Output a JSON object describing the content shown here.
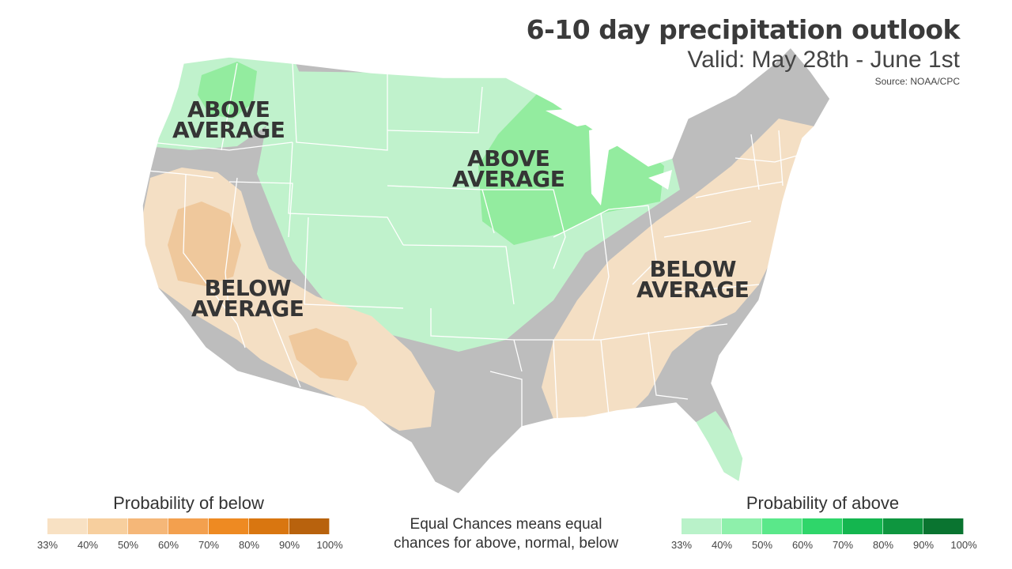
{
  "header": {
    "title": "6-10 day precipitation outlook",
    "subtitle": "Valid: May 28th - June 1st",
    "source": "Source: NOAA/CPC"
  },
  "regions": {
    "northwest": {
      "line1": "ABOVE",
      "line2": "AVERAGE"
    },
    "upper_midwest": {
      "line1": "ABOVE",
      "line2": "AVERAGE"
    },
    "southwest": {
      "line1": "BELOW",
      "line2": "AVERAGE"
    },
    "southeast": {
      "line1": "BELOW",
      "line2": "AVERAGE"
    }
  },
  "legend": {
    "below": {
      "title": "Probability of below",
      "ticks": [
        "33%",
        "40%",
        "50%",
        "60%",
        "70%",
        "80%",
        "90%",
        "100%"
      ],
      "colors": [
        "#f8e1c3",
        "#f7cf9e",
        "#f5b778",
        "#f3a04e",
        "#ee8a22",
        "#d97610",
        "#b8620d"
      ]
    },
    "above": {
      "title": "Probability of above",
      "ticks": [
        "33%",
        "40%",
        "50%",
        "60%",
        "70%",
        "80%",
        "90%",
        "100%"
      ],
      "colors": [
        "#b9f2c9",
        "#8ef0ab",
        "#5ae88a",
        "#2fd66a",
        "#14b64f",
        "#0e963f",
        "#0a7430"
      ]
    },
    "equal_note_line1": "Equal Chances means equal",
    "equal_note_line2": "chances for above, normal, below"
  },
  "colors": {
    "equal_chances": "#bdbdbd",
    "above_33": "#c0f2cc",
    "above_40": "#93ec9f",
    "below_33": "#f4dfc4",
    "below_40": "#efc89c",
    "state_border": "#ffffff"
  }
}
